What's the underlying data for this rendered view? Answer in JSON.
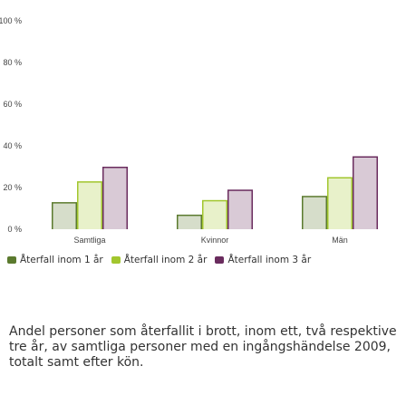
{
  "chart_data": {
    "type": "bar",
    "categories": [
      "Samtliga",
      "Kvinnor",
      "Män"
    ],
    "series": [
      {
        "name": "Återfall inom 1 år",
        "values": [
          13,
          7,
          16
        ],
        "color": "#5b7a2e"
      },
      {
        "name": "Återfall inom 2 år",
        "values": [
          23,
          14,
          25
        ],
        "color": "#a2c62e"
      },
      {
        "name": "Återfall inom 3 år",
        "values": [
          30,
          19,
          35
        ],
        "color": "#6a2c5e"
      }
    ],
    "yticks": [
      "0 %",
      "20 %",
      "40 %",
      "60 %",
      "80 %",
      "100 %"
    ],
    "ylim": [
      0,
      100
    ],
    "grid": false,
    "legend_position": "bottom",
    "bar_fill": "light",
    "caption": "Andel personer som återfallit i brott, inom ett, två respektive tre år, av samtliga personer med en ingångshändelse 2009, totalt samt efter kön."
  }
}
